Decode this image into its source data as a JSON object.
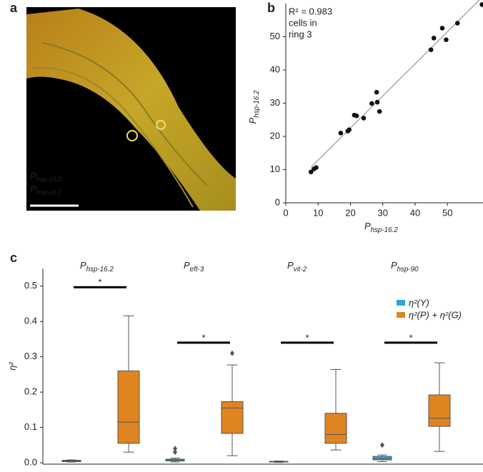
{
  "panel_labels": [
    "a",
    "b",
    "c"
  ],
  "image": {
    "labels": [
      {
        "base": "P",
        "sub": "hsp-16.2",
        "color": "#7ad63a"
      },
      {
        "base": "P",
        "sub": "hsp-16.2",
        "color": "#e8241c"
      }
    ]
  },
  "chart_data": [
    {
      "type": "scatter",
      "annotation": [
        "R² = 0.983",
        "cells in",
        "ring 3"
      ],
      "x_label": {
        "base": "P",
        "sub": "hsp-16.2",
        "color": "#7ab828"
      },
      "y_label": {
        "base": "P",
        "sub": "hsp-16.2",
        "color": "#e8241c"
      },
      "x": [
        7.8,
        8.7,
        9.4,
        17,
        19.2,
        19.6,
        21.2,
        21.9,
        24.1,
        26.6,
        28.1,
        28.3,
        29,
        44.9,
        45.8,
        48.4,
        49.6,
        53.1,
        60.7
      ],
      "values": [
        9.3,
        10.2,
        10.6,
        21,
        21.6,
        22,
        26.4,
        26.2,
        25.5,
        29.9,
        33.3,
        30.3,
        27.5,
        46.1,
        49.6,
        52.6,
        49.1,
        54.1,
        59.7
      ],
      "color": "#111111",
      "fit_line": true,
      "xlim": [
        0,
        61
      ],
      "ylim": [
        0,
        60
      ],
      "xticks": [
        0,
        10,
        20,
        30,
        40,
        50
      ],
      "yticks": [
        0,
        10,
        20,
        30,
        40,
        50
      ]
    },
    {
      "type": "box",
      "y_label": "η²",
      "category_titles": [
        {
          "base": "P",
          "sub": "hsp-16.2"
        },
        {
          "base": "P",
          "sub": "eft-3"
        },
        {
          "base": "P",
          "sub": "vit-2"
        },
        {
          "base": "P",
          "sub": "hsp-90"
        }
      ],
      "significance": [
        {
          "label": "*",
          "y": 0.497
        },
        {
          "label": "*",
          "y": 0.34
        },
        {
          "label": "*",
          "y": 0.34
        },
        {
          "label": "*",
          "y": 0.34
        }
      ],
      "series": [
        {
          "name": "η²(Y)",
          "color": "#29a7df",
          "boxes": [
            {
              "min": 0.002,
              "q1": 0.003,
              "median": 0.005,
              "q3": 0.007,
              "max": 0.008,
              "outliers": []
            },
            {
              "min": 0.002,
              "q1": 0.005,
              "median": 0.008,
              "q3": 0.01,
              "max": 0.013,
              "outliers": [
                0.03,
                0.04
              ]
            },
            {
              "min": 0.001,
              "q1": 0.002,
              "median": 0.003,
              "q3": 0.004,
              "max": 0.005,
              "outliers": []
            },
            {
              "min": 0.003,
              "q1": 0.008,
              "median": 0.012,
              "q3": 0.018,
              "max": 0.022,
              "outliers": [
                0.05
              ]
            }
          ]
        },
        {
          "name": "η²(P) + η²(G)",
          "color": "#e08420",
          "boxes": [
            {
              "min": 0.03,
              "q1": 0.055,
              "median": 0.115,
              "q3": 0.26,
              "max": 0.416,
              "outliers": []
            },
            {
              "min": 0.02,
              "q1": 0.083,
              "median": 0.155,
              "q3": 0.173,
              "max": 0.277,
              "outliers": [
                0.31
              ]
            },
            {
              "min": 0.036,
              "q1": 0.055,
              "median": 0.08,
              "q3": 0.14,
              "max": 0.264,
              "outliers": []
            },
            {
              "min": 0.032,
              "q1": 0.103,
              "median": 0.126,
              "q3": 0.192,
              "max": 0.283,
              "outliers": []
            }
          ]
        }
      ],
      "ylim": [
        -0.004,
        0.55
      ],
      "yticks": [
        {
          "value": 0,
          "label": "0.0"
        },
        0.1,
        0.2,
        0.3,
        0.4,
        0.5
      ]
    }
  ]
}
